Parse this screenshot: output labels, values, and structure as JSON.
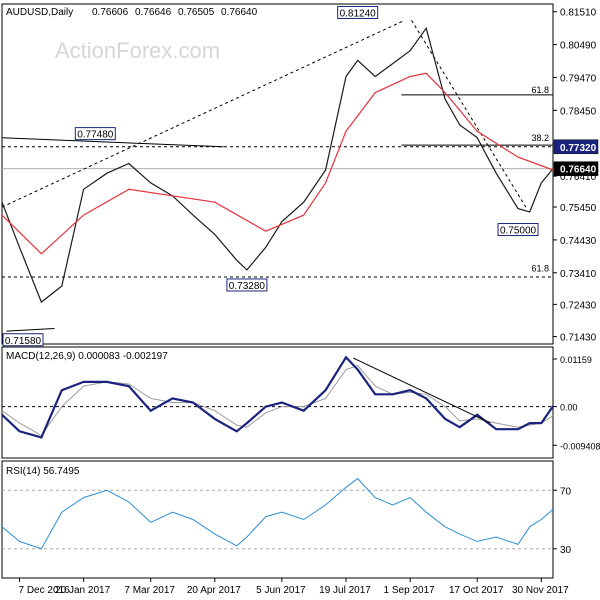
{
  "chart_data": {
    "type": "line",
    "symbol_label": "AUDUSD,Daily",
    "ohlc_values": [
      "0.76606",
      "0.76646",
      "0.76505",
      "0.76640"
    ],
    "watermark": "ActionForex.com",
    "x_tick_labels": [
      "7 Dec 2016",
      "20 Jan 2017",
      "7 Mar 2017",
      "20 Apr 2017",
      "5 Jun 2017",
      "19 Jul 2017",
      "1 Sep 2017",
      "17 Oct 2017",
      "30 Nov 2017"
    ],
    "colors": {
      "price": "#1a1a1a",
      "ma": "#e8303a",
      "macd": "#1a237e",
      "signal": "#9e9e9e",
      "rsi": "#2b8fd6",
      "tag": "#1a237e",
      "trend": "#000000"
    },
    "price_panel": {
      "y_ticks": [
        "0.81510",
        "0.80490",
        "0.79470",
        "0.78450",
        "0.77430",
        "0.76410",
        "0.75450",
        "0.74430",
        "0.73410",
        "0.72430",
        "0.71430"
      ],
      "y_tick_values": [
        0.8151,
        0.8049,
        0.7947,
        0.7845,
        0.7743,
        0.7641,
        0.7545,
        0.7443,
        0.7341,
        0.7243,
        0.7143
      ],
      "ylim": [
        0.712,
        0.8175
      ],
      "current_price": 0.7664,
      "current_price_label": "0.76640",
      "level_label": "0.77320",
      "level_value": 0.7732,
      "annotations": [
        {
          "text": "0.81240",
          "x": "2017-07-27",
          "y": 0.8124
        },
        {
          "text": "0.77480",
          "x": "2017-01-28",
          "y": 0.7748
        },
        {
          "text": "0.73280",
          "x": "2017-05-12",
          "y": 0.7328
        },
        {
          "text": "0.75000",
          "x": "2017-11-14",
          "y": 0.75
        },
        {
          "text": "0.71580",
          "x": "2016-12-04",
          "y": 0.7158
        }
      ],
      "fib_labels": [
        {
          "text": "61.8",
          "x": "2017-12-06",
          "y": 0.7893
        },
        {
          "text": "38.2",
          "x": "2017-12-06",
          "y": 0.7743
        },
        {
          "text": "61.8",
          "x": "2017-12-06",
          "y": 0.7338
        }
      ],
      "close_x": [
        "2016-11-25",
        "2016-12-07",
        "2016-12-22",
        "2017-01-05",
        "2017-01-20",
        "2017-02-05",
        "2017-02-20",
        "2017-03-07",
        "2017-03-22",
        "2017-04-05",
        "2017-04-20",
        "2017-05-05",
        "2017-05-12",
        "2017-05-25",
        "2017-06-05",
        "2017-06-20",
        "2017-07-05",
        "2017-07-19",
        "2017-07-27",
        "2017-08-08",
        "2017-08-20",
        "2017-09-01",
        "2017-09-12",
        "2017-09-25",
        "2017-10-05",
        "2017-10-17",
        "2017-10-30",
        "2017-11-14",
        "2017-11-22",
        "2017-11-30",
        "2017-12-08"
      ],
      "close_y": [
        0.756,
        0.742,
        0.725,
        0.73,
        0.76,
        0.765,
        0.768,
        0.762,
        0.758,
        0.752,
        0.746,
        0.738,
        0.735,
        0.742,
        0.75,
        0.756,
        0.766,
        0.795,
        0.8,
        0.795,
        0.799,
        0.803,
        0.81,
        0.788,
        0.78,
        0.776,
        0.765,
        0.754,
        0.753,
        0.762,
        0.7664
      ],
      "ma_x": [
        "2016-11-25",
        "2016-12-22",
        "2017-01-20",
        "2017-02-20",
        "2017-03-22",
        "2017-04-20",
        "2017-05-25",
        "2017-06-20",
        "2017-07-05",
        "2017-07-19",
        "2017-08-08",
        "2017-09-01",
        "2017-09-12",
        "2017-09-25",
        "2017-10-17",
        "2017-11-14",
        "2017-12-08"
      ],
      "ma_y": [
        0.752,
        0.74,
        0.752,
        0.76,
        0.758,
        0.756,
        0.747,
        0.752,
        0.762,
        0.778,
        0.79,
        0.795,
        0.796,
        0.79,
        0.778,
        0.77,
        0.766
      ],
      "trend_lines": [
        {
          "x1": "2016-11-25",
          "y1": 0.7545,
          "x2": "2017-08-28",
          "y2": 0.8124
        },
        {
          "x1": "2016-11-25",
          "y1": 0.776,
          "x2": "2017-04-26",
          "y2": 0.7732
        },
        {
          "x1": "2017-09-02",
          "y1": 0.8124,
          "x2": "2017-11-20",
          "y2": 0.754
        },
        {
          "x1": "2016-11-28",
          "y1": 0.716,
          "x2": "2016-12-31",
          "y2": 0.7168
        }
      ],
      "fib_lines": [
        {
          "x1": "2017-08-26",
          "x2": "2017-12-08",
          "y": 0.7893
        },
        {
          "x1": "2017-08-26",
          "x2": "2017-12-08",
          "y": 0.7737
        },
        {
          "x1": "2016-11-25",
          "x2": "2017-12-08",
          "y": 0.7328
        },
        {
          "x1": "2016-11-25",
          "x2": "2017-12-08",
          "y": 0.7732
        }
      ]
    },
    "macd_panel": {
      "label": "MACD(12,26,9) 0.000083 -0.002197",
      "y_ticks": [
        "0.01159",
        "0.00",
        "-0.009408"
      ],
      "y_tick_values": [
        0.01159,
        0.0,
        -0.009408
      ],
      "ylim": [
        -0.0125,
        0.0145
      ],
      "macd_x": [
        "2016-11-25",
        "2016-12-07",
        "2016-12-22",
        "2017-01-05",
        "2017-01-20",
        "2017-02-05",
        "2017-02-20",
        "2017-03-07",
        "2017-03-22",
        "2017-04-05",
        "2017-04-20",
        "2017-05-05",
        "2017-05-12",
        "2017-05-25",
        "2017-06-05",
        "2017-06-20",
        "2017-07-05",
        "2017-07-19",
        "2017-07-27",
        "2017-08-08",
        "2017-08-20",
        "2017-09-01",
        "2017-09-12",
        "2017-09-25",
        "2017-10-05",
        "2017-10-17",
        "2017-10-30",
        "2017-11-14",
        "2017-11-22",
        "2017-11-30",
        "2017-12-08"
      ],
      "macd_y": [
        -0.002,
        -0.006,
        -0.0075,
        0.004,
        0.006,
        0.006,
        0.005,
        -0.001,
        0.002,
        0.001,
        -0.003,
        -0.006,
        -0.004,
        0.0,
        0.001,
        -0.001,
        0.004,
        0.012,
        0.009,
        0.003,
        0.003,
        0.004,
        0.002,
        -0.003,
        -0.005,
        -0.002,
        -0.0055,
        -0.0055,
        -0.004,
        -0.004,
        0.0001
      ],
      "signal_y": [
        -0.001,
        -0.004,
        -0.007,
        0.0,
        0.005,
        0.006,
        0.0055,
        0.002,
        0.001,
        0.001,
        -0.001,
        -0.0045,
        -0.005,
        -0.0015,
        0.0,
        0.0,
        0.002,
        0.009,
        0.01,
        0.005,
        0.003,
        0.0035,
        0.003,
        0.0,
        -0.0035,
        -0.003,
        -0.004,
        -0.005,
        -0.0045,
        -0.004,
        -0.0022
      ],
      "trend_line": {
        "x1": "2017-07-24",
        "y1": 0.0118,
        "x2": "2017-10-26",
        "y2": -0.004
      }
    },
    "rsi_panel": {
      "label": "RSI(14) 56.7495",
      "y_ticks": [
        "70",
        "30"
      ],
      "y_tick_values": [
        70,
        30
      ],
      "ylim": [
        10,
        90
      ],
      "rsi_x": [
        "2016-11-25",
        "2016-12-07",
        "2016-12-22",
        "2017-01-05",
        "2017-01-20",
        "2017-02-05",
        "2017-02-20",
        "2017-03-07",
        "2017-03-22",
        "2017-04-05",
        "2017-04-20",
        "2017-05-05",
        "2017-05-12",
        "2017-05-25",
        "2017-06-05",
        "2017-06-20",
        "2017-07-05",
        "2017-07-19",
        "2017-07-27",
        "2017-08-08",
        "2017-08-20",
        "2017-09-01",
        "2017-09-12",
        "2017-09-25",
        "2017-10-05",
        "2017-10-17",
        "2017-10-30",
        "2017-11-14",
        "2017-11-22",
        "2017-11-30",
        "2017-12-08"
      ],
      "rsi_y": [
        45,
        35,
        30,
        55,
        65,
        70,
        62,
        48,
        55,
        50,
        40,
        32,
        38,
        52,
        55,
        50,
        60,
        72,
        78,
        65,
        60,
        65,
        55,
        45,
        40,
        35,
        38,
        33,
        45,
        50,
        57
      ]
    }
  }
}
